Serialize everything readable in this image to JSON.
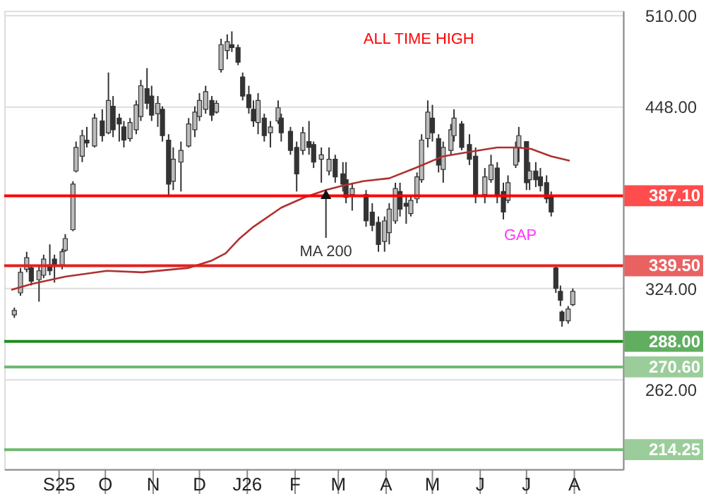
{
  "chart_data": {
    "type": "candlestick",
    "color": "#333333",
    "x": [
      "2025-08-03",
      "2025-08-07",
      "2025-08-11",
      "2025-08-14",
      "2025-08-19",
      "2025-08-22",
      "2025-08-26",
      "2025-08-29",
      "2025-09-03",
      "2025-09-05",
      "2025-09-10",
      "2025-09-12",
      "2025-09-16",
      "2025-09-19",
      "2025-09-24",
      "2025-09-29",
      "2025-10-03",
      "2025-10-06",
      "2025-10-10",
      "2025-10-13",
      "2025-10-17",
      "2025-10-21",
      "2025-10-24",
      "2025-10-28",
      "2025-10-31",
      "2025-11-04",
      "2025-11-07",
      "2025-11-11",
      "2025-11-14",
      "2025-11-19",
      "2025-11-24",
      "2025-11-28",
      "2025-12-01",
      "2025-12-05",
      "2025-12-09",
      "2025-12-12",
      "2025-12-15",
      "2025-12-19",
      "2025-12-22",
      "2025-12-26",
      "2025-12-29",
      "2026-01-02",
      "2026-01-05",
      "2026-01-08",
      "2026-01-12",
      "2026-01-16",
      "2026-01-21",
      "2026-01-23",
      "2026-01-29",
      "2026-02-02",
      "2026-02-06",
      "2026-02-10",
      "2026-02-13",
      "2026-02-18",
      "2026-02-23",
      "2026-02-27",
      "2026-03-04",
      "2026-03-06",
      "2026-03-10",
      "2026-03-19",
      "2026-03-23",
      "2026-03-27",
      "2026-03-31",
      "2026-04-03",
      "2026-04-07",
      "2026-04-10",
      "2026-04-14",
      "2026-04-17",
      "2026-04-21",
      "2026-04-24",
      "2026-04-28",
      "2026-05-01",
      "2026-05-05",
      "2026-05-08",
      "2026-05-13",
      "2026-05-15",
      "2026-05-20",
      "2026-05-25",
      "2026-05-29",
      "2026-06-04",
      "2026-06-08",
      "2026-06-12",
      "2026-06-16",
      "2026-06-19",
      "2026-06-24",
      "2026-06-26",
      "2026-07-01",
      "2026-07-03",
      "2026-07-07",
      "2026-07-10",
      "2026-07-14",
      "2026-07-17",
      "2026-07-20",
      "2026-07-23",
      "2026-07-24",
      "2026-07-28",
      "2026-07-31"
    ],
    "ohlc": [
      [
        306,
        311,
        304,
        309
      ],
      [
        321,
        338,
        319,
        335
      ],
      [
        337,
        349,
        335,
        345
      ],
      [
        338,
        340,
        326,
        329
      ],
      [
        330,
        340,
        315,
        336
      ],
      [
        333,
        347,
        331,
        344
      ],
      [
        340,
        354,
        333,
        336
      ],
      [
        344,
        347,
        328,
        340
      ],
      [
        340,
        351,
        337,
        349
      ],
      [
        350,
        361,
        349,
        358
      ],
      [
        364,
        397,
        363,
        395
      ],
      [
        404,
        424,
        403,
        420
      ],
      [
        414,
        432,
        410,
        428
      ],
      [
        425,
        434,
        420,
        423
      ],
      [
        421,
        443,
        420,
        440
      ],
      [
        438,
        446,
        424,
        428
      ],
      [
        430,
        471,
        429,
        452
      ],
      [
        448,
        455,
        427,
        432
      ],
      [
        440,
        443,
        424,
        436
      ],
      [
        434,
        438,
        420,
        425
      ],
      [
        426,
        440,
        424,
        437
      ],
      [
        432,
        452,
        429,
        449
      ],
      [
        441,
        466,
        438,
        462
      ],
      [
        460,
        474,
        446,
        450
      ],
      [
        455,
        462,
        438,
        442
      ],
      [
        443,
        455,
        434,
        450
      ],
      [
        446,
        448,
        424,
        428
      ],
      [
        425,
        429,
        387,
        395
      ],
      [
        397,
        420,
        391,
        412
      ],
      [
        410,
        424,
        390,
        418
      ],
      [
        421,
        440,
        420,
        436
      ],
      [
        432,
        448,
        427,
        444
      ],
      [
        441,
        457,
        438,
        452
      ],
      [
        446,
        462,
        443,
        458
      ],
      [
        452,
        455,
        438,
        442
      ],
      [
        444,
        452,
        443,
        450
      ],
      [
        473,
        494,
        471,
        490
      ],
      [
        486,
        497,
        480,
        492
      ],
      [
        490,
        499,
        485,
        488
      ],
      [
        488,
        490,
        476,
        478
      ],
      [
        468,
        471,
        452,
        455
      ],
      [
        456,
        462,
        443,
        447
      ],
      [
        446,
        452,
        434,
        438
      ],
      [
        437,
        457,
        429,
        452
      ],
      [
        440,
        443,
        424,
        428
      ],
      [
        430,
        438,
        420,
        434
      ],
      [
        438,
        452,
        436,
        447
      ],
      [
        440,
        443,
        424,
        430
      ],
      [
        431,
        434,
        415,
        418
      ],
      [
        420,
        424,
        390,
        402
      ],
      [
        418,
        434,
        415,
        430
      ],
      [
        424,
        438,
        415,
        420
      ],
      [
        422,
        424,
        406,
        410
      ],
      [
        412,
        420,
        396,
        415
      ],
      [
        404,
        420,
        401,
        412
      ],
      [
        412,
        415,
        396,
        400
      ],
      [
        402,
        410,
        390,
        395
      ],
      [
        398,
        410,
        382,
        386
      ],
      [
        388,
        396,
        377,
        392
      ],
      [
        388,
        391,
        366,
        370
      ],
      [
        376,
        382,
        363,
        367
      ],
      [
        369,
        373,
        349,
        354
      ],
      [
        356,
        373,
        349,
        370
      ],
      [
        362,
        382,
        354,
        378
      ],
      [
        370,
        396,
        368,
        392
      ],
      [
        390,
        396,
        373,
        378
      ],
      [
        382,
        387,
        368,
        380
      ],
      [
        375,
        387,
        373,
        384
      ],
      [
        385,
        403,
        382,
        400
      ],
      [
        398,
        429,
        396,
        425
      ],
      [
        426,
        452,
        420,
        444
      ],
      [
        440,
        449,
        424,
        430
      ],
      [
        426,
        429,
        403,
        408
      ],
      [
        405,
        424,
        396,
        420
      ],
      [
        418,
        436,
        415,
        432
      ],
      [
        428,
        446,
        424,
        440
      ],
      [
        436,
        438,
        418,
        420
      ],
      [
        422,
        429,
        408,
        412
      ],
      [
        414,
        420,
        382,
        388
      ],
      [
        388,
        406,
        382,
        400
      ],
      [
        398,
        415,
        396,
        408
      ],
      [
        406,
        410,
        382,
        388
      ],
      [
        390,
        396,
        371,
        376
      ],
      [
        384,
        401,
        382,
        396
      ],
      [
        408,
        424,
        406,
        420
      ],
      [
        420,
        434,
        410,
        428
      ],
      [
        424,
        424,
        391,
        396
      ],
      [
        398,
        410,
        391,
        404
      ],
      [
        404,
        410,
        393,
        398
      ],
      [
        400,
        406,
        390,
        394
      ],
      [
        396,
        401,
        382,
        385
      ],
      [
        386,
        390,
        373,
        376
      ],
      [
        338,
        339.5,
        321,
        324
      ],
      [
        322,
        326,
        312,
        316
      ],
      [
        308,
        309,
        298,
        302
      ],
      [
        302,
        312,
        300,
        310
      ],
      [
        313,
        324,
        312,
        322
      ]
    ],
    "series": [
      {
        "type": "line",
        "color": "#b03030",
        "x": [
          "2025-08-01",
          "2025-08-14",
          "2025-09-05",
          "2025-10-02",
          "2025-10-25",
          "2025-11-24",
          "2025-12-09",
          "2025-12-18",
          "2025-12-27",
          "2026-01-05",
          "2026-01-23",
          "2026-02-07",
          "2026-02-21",
          "2026-03-04",
          "2026-03-17",
          "2026-04-03",
          "2026-04-20",
          "2026-05-08",
          "2026-05-25",
          "2026-06-12",
          "2026-06-25",
          "2026-07-04",
          "2026-07-17",
          "2026-07-29"
        ],
        "values": [
          323,
          327,
          332,
          336,
          335,
          338,
          343,
          348,
          358,
          366,
          379,
          386,
          391,
          394,
          397,
          399,
          406,
          414,
          417,
          420,
          420,
          419,
          414,
          411
        ]
      }
    ],
    "xlim": [
      "2025-08-01",
      "2026-08-28"
    ],
    "xticks": [
      {
        "value": "2025-09-01",
        "label": "S25"
      },
      {
        "value": "2025-10-01",
        "label": "O"
      },
      {
        "value": "2025-11-01",
        "label": "N"
      },
      {
        "value": "2025-12-01",
        "label": "D"
      },
      {
        "value": "2026-01-01",
        "label": "J26"
      },
      {
        "value": "2026-02-01",
        "label": "F"
      },
      {
        "value": "2026-03-01",
        "label": "M"
      },
      {
        "value": "2026-04-01",
        "label": "A"
      },
      {
        "value": "2026-05-01",
        "label": "M"
      },
      {
        "value": "2026-06-01",
        "label": "J"
      },
      {
        "value": "2026-07-01",
        "label": "J"
      },
      {
        "value": "2026-08-01",
        "label": "A"
      }
    ],
    "ylim": [
      201,
      513
    ],
    "yticks": [
      {
        "value": 262,
        "label": "262.00"
      },
      {
        "value": 324,
        "label": "324.00"
      },
      {
        "value": 448,
        "label": "448.00"
      },
      {
        "value": 510,
        "label": "510.00"
      }
    ],
    "grid": "y",
    "ref_lines": [
      {
        "axis": "y",
        "value": 387.1,
        "label": "387.10",
        "color": "#ff0000"
      },
      {
        "axis": "y",
        "value": 339.5,
        "label": "339.50",
        "color": "#e02020"
      },
      {
        "axis": "y",
        "value": 288,
        "label": "288.00",
        "color": "#1e8c1e"
      },
      {
        "axis": "y",
        "value": 270.6,
        "label": "270.60",
        "color": "#6fb86f"
      },
      {
        "axis": "y",
        "value": 214.25,
        "label": "214.25",
        "color": "#6fb86f"
      }
    ],
    "annotations": [
      "ALL TIME HIGH",
      "GAP",
      {
        "text": "MA 200",
        "x": "2026-02-21",
        "y": 391
      }
    ]
  }
}
